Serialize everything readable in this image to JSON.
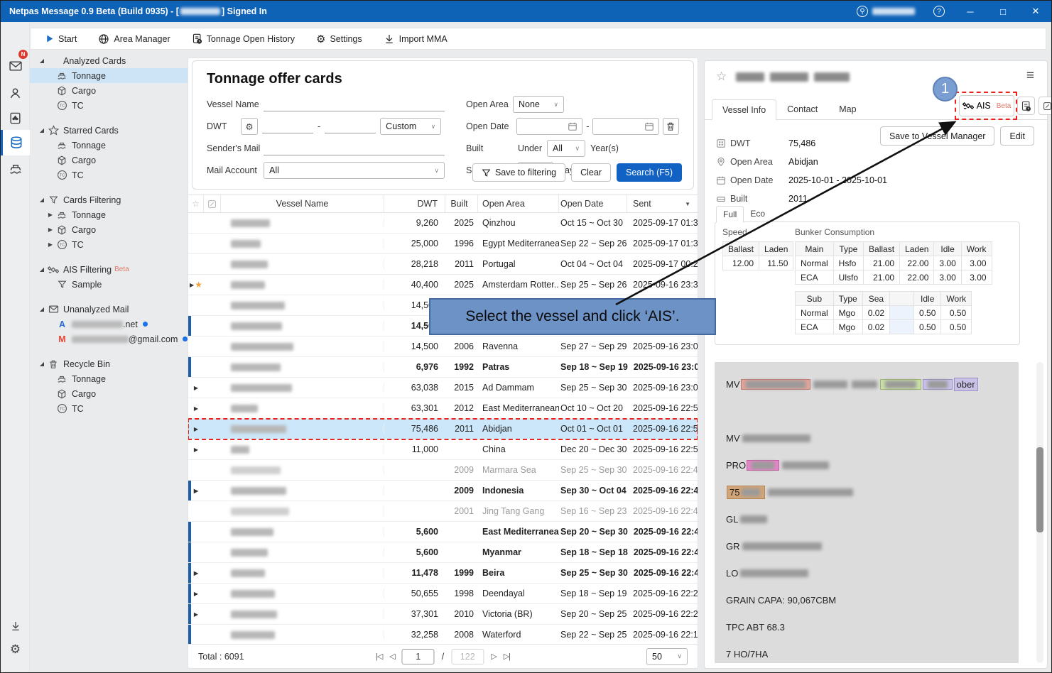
{
  "titlebar": {
    "title_prefix": "Netpas Message 0.9 Beta (Build 0935) - [",
    "title_suffix": "] Signed In",
    "help_glyph": "?",
    "min_glyph": "─",
    "max_glyph": "□",
    "close_glyph": "✕"
  },
  "toolbar": {
    "items": [
      {
        "label": "Start",
        "icon": "play"
      },
      {
        "label": "Area Manager",
        "icon": "globe"
      },
      {
        "label": "Tonnage Open History",
        "icon": "docclock"
      },
      {
        "label": "Settings",
        "icon": "gear"
      },
      {
        "label": "Import MMA",
        "icon": "download"
      }
    ]
  },
  "rail": {
    "badge": "N"
  },
  "sidebar": {
    "sections": [
      {
        "label": "Analyzed Cards",
        "icon": "analyzed",
        "items": [
          {
            "label": "Tonnage",
            "icon": "tonnage",
            "selected": true
          },
          {
            "label": "Cargo",
            "icon": "cargo"
          },
          {
            "label": "TC",
            "icon": "tc"
          }
        ]
      },
      {
        "label": "Starred Cards",
        "icon": "staro",
        "items": [
          {
            "label": "Tonnage",
            "icon": "tonnage"
          },
          {
            "label": "Cargo",
            "icon": "cargo"
          },
          {
            "label": "TC",
            "icon": "tc"
          }
        ]
      },
      {
        "label": "Cards Filtering",
        "icon": "funnel",
        "items": [
          {
            "label": "Tonnage",
            "icon": "tonnage",
            "collapsed": true
          },
          {
            "label": "Cargo",
            "icon": "cargo",
            "collapsed": true
          },
          {
            "label": "TC",
            "icon": "tc",
            "collapsed": true
          }
        ]
      },
      {
        "label": "AIS Filtering",
        "badge": "Beta",
        "icon": "satellite",
        "items": [
          {
            "label": "Sample",
            "icon": "funnel",
            "noarrow": true
          }
        ]
      },
      {
        "label": "Unanalyzed Mail",
        "icon": "envelope",
        "items": [
          {
            "icon": "logoA",
            "blur_w": 72,
            "suffix": ".net",
            "dot": true
          },
          {
            "icon": "gmail",
            "blur_w": 84,
            "suffix": "@gmail.com",
            "dot": true
          }
        ]
      },
      {
        "label": "Recycle Bin",
        "icon": "trash",
        "items": [
          {
            "label": "Tonnage",
            "icon": "tonnage"
          },
          {
            "label": "Cargo",
            "icon": "cargo"
          },
          {
            "label": "TC",
            "icon": "tc"
          }
        ]
      }
    ]
  },
  "filter": {
    "title": "Tonnage offer cards",
    "vessel_name_label": "Vessel Name",
    "dwt_label": "DWT",
    "dwt_range_sep": "-",
    "dwt_preset": "Custom",
    "senders_mail_label": "Sender's Mail",
    "mail_account_label": "Mail Account",
    "mail_account_value": "All",
    "open_area_label": "Open Area",
    "open_area_value": "None",
    "open_date_label": "Open Date",
    "open_date_sep": "-",
    "built_label": "Built",
    "built_under": "Under",
    "built_value": "All",
    "built_suffix": "Year(s)",
    "sent_within_label": "Sent within",
    "sent_within_value": "All",
    "sent_within_suffix": "Days.",
    "save_to_filtering": "Save to filtering",
    "clear": "Clear",
    "search": "Search (F5)",
    "chevron_glyph": "∨"
  },
  "table": {
    "headers": {
      "vessel_name": "Vessel Name",
      "dwt": "DWT",
      "built": "Built",
      "open_area": "Open Area",
      "open_date": "Open Date",
      "sent": "Sent",
      "sort_glyph": "▼"
    },
    "expand_glyph": "▶",
    "star_glyph": "★",
    "rows": [
      {
        "blur_w": 55,
        "dwt": "9,260",
        "built": "2025",
        "area": "Qinzhou",
        "date": "Oct 15 ~ Oct 30",
        "sent": "2025-09-17 01:33"
      },
      {
        "blur_w": 42,
        "dwt": "25,000",
        "built": "1996",
        "area": "Egypt Mediterranean",
        "date": "Sep 22 ~ Sep 26",
        "sent": "2025-09-17 01:33"
      },
      {
        "blur_w": 52,
        "dwt": "28,218",
        "built": "2011",
        "area": "Portugal",
        "date": "Oct 04 ~ Oct 04",
        "sent": "2025-09-17 00:22"
      },
      {
        "blur_w": 48,
        "expand": true,
        "star": true,
        "dwt": "40,400",
        "built": "2025",
        "area": "Amsterdam Rotter...",
        "date": "Sep 25 ~ Sep 26",
        "sent": "2025-09-16 23:35"
      },
      {
        "blur_w": 76,
        "dwt": "14,500",
        "built": "",
        "area": "",
        "date": "",
        "sent": ""
      },
      {
        "blur_w": 72,
        "bar": true,
        "bold": true,
        "dwt": "14,500",
        "built": "",
        "area": "",
        "date": "",
        "sent": ""
      },
      {
        "blur_w": 88,
        "dwt": "14,500",
        "built": "2006",
        "area": "Ravenna",
        "date": "Sep 27 ~ Sep 29",
        "sent": "2025-09-16 23:09"
      },
      {
        "blur_w": 70,
        "bar": true,
        "bold": true,
        "dwt": "6,976",
        "built": "1992",
        "area": "Patras",
        "date": "Sep 18 ~ Sep 19",
        "sent": "2025-09-16 23:09"
      },
      {
        "blur_w": 86,
        "expand": true,
        "dwt": "63,038",
        "built": "2015",
        "area": "Ad Dammam",
        "date": "Sep 25 ~ Sep 30",
        "sent": "2025-09-16 23:01"
      },
      {
        "blur_w": 38,
        "expand": true,
        "dwt": "63,301",
        "built": "2012",
        "area": "East Mediterranean...",
        "date": "Oct 10 ~ Oct 20",
        "sent": "2025-09-16 22:50"
      },
      {
        "blur_w": 78,
        "expand": true,
        "selected": true,
        "target": true,
        "dwt": "75,486",
        "built": "2011",
        "area": "Abidjan",
        "date": "Oct 01 ~ Oct 01",
        "sent": "2025-09-16 22:50"
      },
      {
        "blur_w": 26,
        "expand": true,
        "dwt": "11,000",
        "built": "",
        "area": "China",
        "date": "Dec 20 ~ Dec 30",
        "sent": "2025-09-16 22:50"
      },
      {
        "blur_w": 70,
        "grey": true,
        "dwt": "",
        "built": "2009",
        "area": "Marmara Sea",
        "date": "Sep 25 ~ Sep 30",
        "sent": "2025-09-16 22:44"
      },
      {
        "blur_w": 78,
        "bar": true,
        "bold": true,
        "expand": true,
        "dwt": "",
        "built": "2009",
        "area": "Indonesia",
        "date": "Sep 30 ~ Oct 04",
        "sent": "2025-09-16 22:44"
      },
      {
        "blur_w": 82,
        "grey": true,
        "dwt": "",
        "built": "2001",
        "area": "Jing Tang Gang",
        "date": "Sep 16 ~ Sep 23",
        "sent": "2025-09-16 22:44"
      },
      {
        "blur_w": 60,
        "bar": true,
        "bold": true,
        "dwt": "5,600",
        "built": "",
        "area": "East Mediterranea...",
        "date": "Sep 20 ~ Sep 30",
        "sent": "2025-09-16 22:42"
      },
      {
        "blur_w": 52,
        "bar": true,
        "bold": true,
        "dwt": "5,600",
        "built": "",
        "area": "Myanmar",
        "date": "Sep 18 ~ Sep 18",
        "sent": "2025-09-16 22:41"
      },
      {
        "blur_w": 48,
        "bar": true,
        "bold": true,
        "expand": true,
        "dwt": "11,478",
        "built": "1999",
        "area": "Beira",
        "date": "Sep 25 ~ Sep 30",
        "sent": "2025-09-16 22:41"
      },
      {
        "blur_w": 62,
        "bar": true,
        "expand": true,
        "dwt": "50,655",
        "built": "1998",
        "area": "Deendayal",
        "date": "Sep 18 ~ Sep 19",
        "sent": "2025-09-16 22:24"
      },
      {
        "blur_w": 65,
        "bar": true,
        "expand": true,
        "dwt": "37,301",
        "built": "2010",
        "area": "Victoria (BR)",
        "date": "Sep 20 ~ Sep 25",
        "sent": "2025-09-16 22:23"
      },
      {
        "blur_w": 62,
        "bar": true,
        "dwt": "32,258",
        "built": "2008",
        "area": "Waterford",
        "date": "Sep 22 ~ Sep 25",
        "sent": "2025-09-16 22:11"
      }
    ]
  },
  "pagination": {
    "total": "Total : 6091",
    "first_glyph": "|◁",
    "prev_glyph": "◁",
    "next_glyph": "▷",
    "last_glyph": "▷|",
    "page": "1",
    "sep": "/",
    "pages": "122",
    "page_size": "50",
    "chevron_glyph": "∨"
  },
  "callout": {
    "text": "Select the vessel and click ‘AIS’.",
    "step": "1"
  },
  "detail": {
    "star_glyph": "☆",
    "menu_glyph": "≡",
    "tabs": [
      {
        "label": "Vessel Info",
        "active": true
      },
      {
        "label": "Contact"
      },
      {
        "label": "Map"
      }
    ],
    "ais_label": "AIS",
    "ais_beta": "Beta",
    "save_btn": "Save to Vessel Manager",
    "edit_btn": "Edit",
    "fields": [
      {
        "icon": "grid",
        "label": "DWT",
        "value": "75,486"
      },
      {
        "icon": "pin",
        "label": "Open Area",
        "value": "Abidjan"
      },
      {
        "icon": "calendar",
        "label": "Open Date",
        "value": "2025-10-01",
        "sep": "-",
        "value2": "2025-10-01"
      },
      {
        "icon": "shipsm",
        "label": "Built",
        "value": "2011"
      }
    ],
    "mode_tabs": [
      {
        "label": "Full",
        "active": true
      },
      {
        "label": "Eco"
      }
    ],
    "speed": {
      "label": "Speed",
      "headers": [
        "Ballast",
        "Laden"
      ],
      "values": [
        "12.00",
        "11.50"
      ]
    },
    "bunker": {
      "label": "Bunker Consumption",
      "main": {
        "headers": [
          "Main",
          "Type",
          "Ballast",
          "Laden",
          "Idle",
          "Work"
        ],
        "rows": [
          [
            "Normal",
            "Hsfo",
            "21.00",
            "22.00",
            "3.00",
            "3.00"
          ],
          [
            "ECA",
            "Ulsfo",
            "21.00",
            "22.00",
            "3.00",
            "3.00"
          ]
        ]
      },
      "sub": {
        "headers": [
          "Sub",
          "Type",
          "Sea",
          "",
          "Idle",
          "Work"
        ],
        "rows": [
          [
            "Normal",
            "Mgo",
            "0.02",
            "",
            "0.50",
            "0.50"
          ],
          [
            "ECA",
            "Mgo",
            "0.02",
            "",
            "0.50",
            "0.50"
          ]
        ]
      }
    },
    "mail_lines": [
      [
        {
          "text": "MV "
        },
        {
          "blur": 84,
          "hl": "salmon"
        },
        {
          "blur": 48
        },
        {
          "blur": 36
        },
        {
          "blur": 44,
          "hl": "green"
        },
        {
          "blur": 28,
          "hl": "purple"
        },
        {
          "text": "ober",
          "hl": "purple"
        }
      ],
      [],
      [
        {
          "text": "MV "
        },
        {
          "blur": 96
        }
      ],
      [
        {
          "text": "PRO"
        },
        {
          "blur": 32,
          "hl": "pink"
        },
        {
          "blur": 66
        }
      ],
      [
        {
          "text": "75",
          "hl": "tan",
          "blur": 26
        },
        {
          "blur": 120
        }
      ],
      [
        {
          "text": "GL"
        },
        {
          "blur": 38
        }
      ],
      [
        {
          "text": "GR"
        },
        {
          "blur": 112
        }
      ],
      [
        {
          "text": "LO"
        },
        {
          "blur": 96
        }
      ],
      [
        {
          "text": "GRAIN CAPA: 90,067CBM"
        }
      ],
      [
        {
          "text": "TPC ABT 68.3"
        }
      ],
      [
        {
          "text": "7 HO/7HA"
        }
      ]
    ],
    "hl_colors": {
      "salmon": [
        "#dfa49c",
        "#c27b6f"
      ],
      "green": [
        "#cbe0a6",
        "#9ab66a"
      ],
      "purple": [
        "#c9c2e6",
        "#9b8ecb"
      ],
      "pink": [
        "#e287c5",
        "#c75da6"
      ],
      "tan": [
        "#d2a578",
        "#b58755"
      ]
    }
  },
  "glyphs": {
    "expanded": "◢",
    "collapsed": "▶",
    "gear": "⚙"
  }
}
